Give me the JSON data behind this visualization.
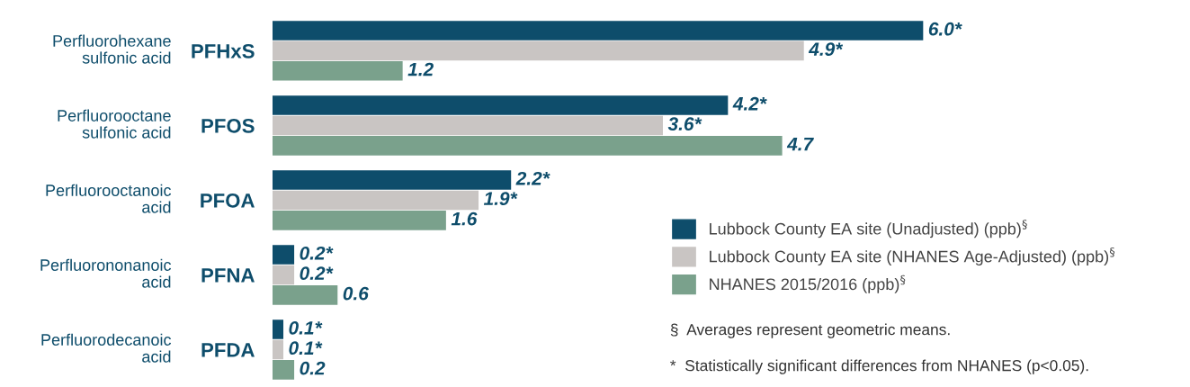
{
  "chart_data": {
    "type": "bar",
    "orientation": "horizontal",
    "categories": [
      "PFHxS",
      "PFOS",
      "PFOA",
      "PFNA",
      "PFDA"
    ],
    "series": [
      {
        "name": "Lubbock County EA site (Unadjusted) (ppb)$^{§}$",
        "color": "#0e4d6b",
        "values": [
          6.0,
          4.2,
          2.2,
          0.2,
          0.1
        ],
        "value_labels": [
          "6.0*",
          "4.2*",
          "2.2*",
          "0.2*",
          "0.1*"
        ]
      },
      {
        "name": "Lubbock County EA site (NHANES Age-Adjusted) (ppb)$^{§}$",
        "color": "#c9c5c3",
        "values": [
          4.9,
          3.6,
          1.9,
          0.2,
          0.1
        ],
        "value_labels": [
          "4.9*",
          "3.6*",
          "1.9*",
          "0.2*",
          "0.1*"
        ]
      },
      {
        "name": "NHANES 2015/2016 (ppb)$^{§}$",
        "color": "#7aa18c",
        "values": [
          1.2,
          4.7,
          1.6,
          0.6,
          0.2
        ],
        "value_labels": [
          "1.2",
          "4.7",
          "1.6",
          "0.6",
          "0.2"
        ]
      }
    ],
    "annotations": [
      "Perfluorohexane\nsulfonic acid",
      "Perfluorooctane\nsulfonic acid",
      "Perfluorooctanoic\nacid",
      "Perfluorononanoic\nacid",
      "Perfluorodecanoic\nacid",
      "§  Averages represent geometric means.",
      "*  Statistically significant differences from NHANES (p<0.05)."
    ],
    "legend": "bottom right",
    "grid": false
  }
}
